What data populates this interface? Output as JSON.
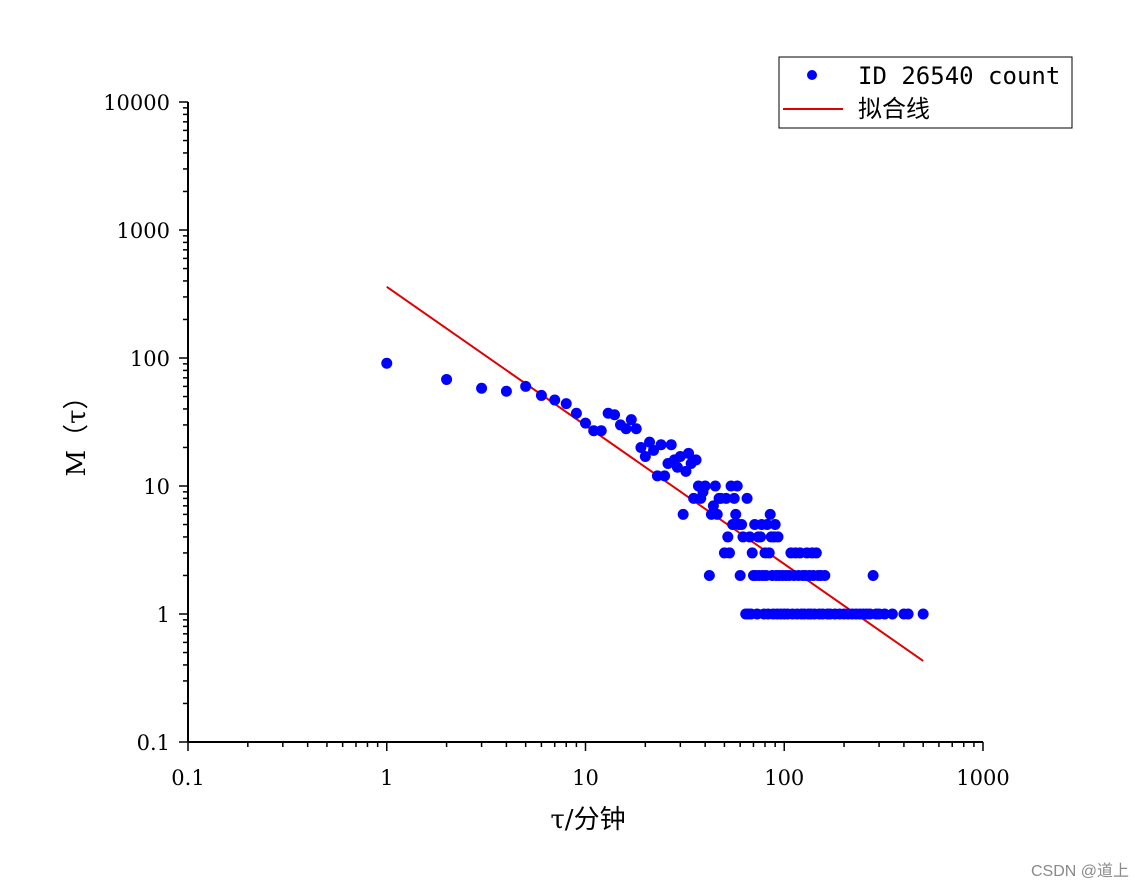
{
  "chart_data": {
    "type": "scatter",
    "xscale": "log",
    "yscale": "log",
    "xlim": [
      0.1,
      1000
    ],
    "ylim": [
      0.1,
      10000
    ],
    "xlabel": "τ/分钟",
    "ylabel": "M（τ）",
    "x_tick_labels": [
      "0.1",
      "1",
      "10",
      "100",
      "1000"
    ],
    "y_tick_labels": [
      "0.1",
      "1",
      "10",
      "100",
      "1000",
      "10000"
    ],
    "x_ticks": [
      0.1,
      1,
      10,
      100,
      1000
    ],
    "y_ticks": [
      0.1,
      1,
      10,
      100,
      1000,
      10000
    ],
    "legend_position": "top-right",
    "colors": {
      "points": "#0000ff",
      "fit": "#e00000"
    },
    "series": [
      {
        "name": "ID 26540 count",
        "kind": "scatter",
        "points": [
          [
            1,
            91
          ],
          [
            2,
            68
          ],
          [
            3,
            58
          ],
          [
            4,
            55
          ],
          [
            5,
            60
          ],
          [
            6,
            51
          ],
          [
            7,
            47
          ],
          [
            8,
            44
          ],
          [
            9,
            37
          ],
          [
            10,
            31
          ],
          [
            11,
            27
          ],
          [
            12,
            27
          ],
          [
            13,
            37
          ],
          [
            14,
            36
          ],
          [
            15,
            30
          ],
          [
            16,
            28
          ],
          [
            17,
            33
          ],
          [
            18,
            28
          ],
          [
            19,
            20
          ],
          [
            20,
            17
          ],
          [
            21,
            22
          ],
          [
            22,
            19
          ],
          [
            23,
            12
          ],
          [
            24,
            21
          ],
          [
            25,
            12
          ],
          [
            26,
            15
          ],
          [
            27,
            21
          ],
          [
            28,
            16
          ],
          [
            29,
            14
          ],
          [
            30,
            17
          ],
          [
            31,
            6
          ],
          [
            32,
            13
          ],
          [
            33,
            18
          ],
          [
            34,
            15
          ],
          [
            35,
            8
          ],
          [
            36,
            16
          ],
          [
            37,
            10
          ],
          [
            38,
            8
          ],
          [
            39,
            9
          ],
          [
            40,
            10
          ],
          [
            42,
            2
          ],
          [
            43,
            6
          ],
          [
            44,
            7
          ],
          [
            45,
            10
          ],
          [
            46,
            6
          ],
          [
            47,
            8
          ],
          [
            48,
            8
          ],
          [
            50,
            3
          ],
          [
            51,
            8
          ],
          [
            52,
            4
          ],
          [
            53,
            3
          ],
          [
            54,
            10
          ],
          [
            55,
            5
          ],
          [
            56,
            8
          ],
          [
            57,
            6
          ],
          [
            58,
            10
          ],
          [
            59,
            5
          ],
          [
            60,
            2
          ],
          [
            61,
            5
          ],
          [
            62,
            4
          ],
          [
            64,
            1
          ],
          [
            65,
            8
          ],
          [
            66,
            1
          ],
          [
            67,
            4
          ],
          [
            68,
            1
          ],
          [
            69,
            3
          ],
          [
            70,
            2
          ],
          [
            71,
            5
          ],
          [
            72,
            2
          ],
          [
            73,
            1
          ],
          [
            74,
            4
          ],
          [
            75,
            2
          ],
          [
            76,
            4
          ],
          [
            77,
            5
          ],
          [
            78,
            2
          ],
          [
            79,
            1
          ],
          [
            80,
            3
          ],
          [
            81,
            2
          ],
          [
            82,
            5
          ],
          [
            83,
            1
          ],
          [
            84,
            3
          ],
          [
            85,
            6
          ],
          [
            86,
            4
          ],
          [
            87,
            2
          ],
          [
            88,
            1
          ],
          [
            89,
            4
          ],
          [
            90,
            5
          ],
          [
            91,
            2
          ],
          [
            92,
            1
          ],
          [
            93,
            4
          ],
          [
            94,
            2
          ],
          [
            96,
            1
          ],
          [
            98,
            2
          ],
          [
            100,
            1
          ],
          [
            102,
            2
          ],
          [
            104,
            1
          ],
          [
            106,
            2
          ],
          [
            108,
            3
          ],
          [
            110,
            1
          ],
          [
            112,
            2
          ],
          [
            114,
            3
          ],
          [
            116,
            1
          ],
          [
            118,
            2
          ],
          [
            120,
            3
          ],
          [
            122,
            1
          ],
          [
            124,
            2
          ],
          [
            126,
            1
          ],
          [
            128,
            2
          ],
          [
            130,
            3
          ],
          [
            132,
            1
          ],
          [
            134,
            2
          ],
          [
            136,
            1
          ],
          [
            138,
            3
          ],
          [
            140,
            2
          ],
          [
            142,
            1
          ],
          [
            145,
            3
          ],
          [
            148,
            2
          ],
          [
            150,
            1
          ],
          [
            153,
            2
          ],
          [
            156,
            1
          ],
          [
            160,
            2
          ],
          [
            165,
            1
          ],
          [
            170,
            1
          ],
          [
            180,
            1
          ],
          [
            190,
            1
          ],
          [
            200,
            1
          ],
          [
            210,
            1
          ],
          [
            220,
            1
          ],
          [
            230,
            1
          ],
          [
            240,
            1
          ],
          [
            250,
            1
          ],
          [
            260,
            1
          ],
          [
            270,
            1
          ],
          [
            280,
            2
          ],
          [
            290,
            1
          ],
          [
            300,
            1
          ],
          [
            320,
            1
          ],
          [
            350,
            1
          ],
          [
            400,
            1
          ],
          [
            420,
            1
          ],
          [
            500,
            1
          ]
        ]
      },
      {
        "name": "拟合线",
        "kind": "line",
        "points": [
          [
            1,
            360
          ],
          [
            500,
            0.43
          ]
        ]
      }
    ]
  },
  "watermark": "CSDN @道上"
}
